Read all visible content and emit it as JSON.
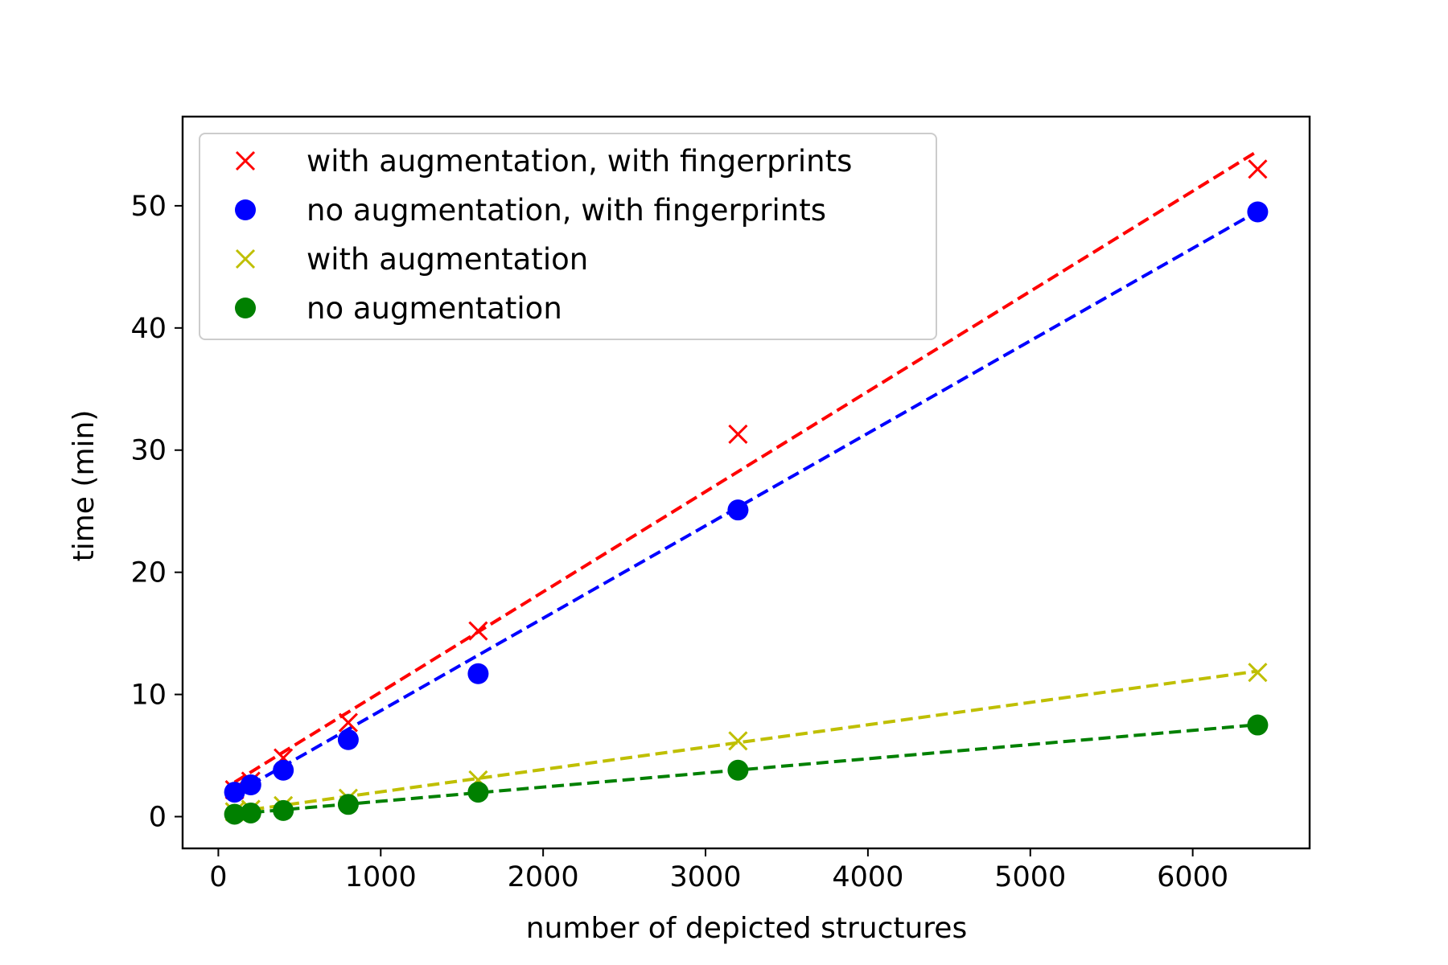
{
  "chart_data": {
    "type": "scatter",
    "xlabel": "number of depicted structures",
    "ylabel": "time (min)",
    "xlim": [
      -220,
      6720
    ],
    "ylim": [
      -2.6,
      57.3
    ],
    "xticks": [
      0,
      1000,
      2000,
      3000,
      4000,
      5000,
      6000
    ],
    "yticks": [
      0,
      10,
      20,
      30,
      40,
      50
    ],
    "xtick_labels": [
      "0",
      "1000",
      "2000",
      "3000",
      "4000",
      "5000",
      "6000"
    ],
    "ytick_labels": [
      "0",
      "10",
      "20",
      "30",
      "40",
      "50"
    ],
    "grid": false,
    "legend_position": "top-left",
    "series": [
      {
        "name": "with augmentation, with fingerprints",
        "marker": "x",
        "color": "#ff0000",
        "x": [
          100,
          200,
          400,
          800,
          1600,
          3200,
          6400
        ],
        "y": [
          2.2,
          2.9,
          4.8,
          7.7,
          15.2,
          31.3,
          53.0
        ],
        "fit": [
          2.0,
          0.0082
        ]
      },
      {
        "name": "no augmentation, with fingerprints",
        "marker": "o",
        "color": "#0000ff",
        "x": [
          100,
          200,
          400,
          800,
          1600,
          3200,
          6400
        ],
        "y": [
          2.0,
          2.6,
          3.8,
          6.3,
          11.7,
          25.1,
          49.5
        ],
        "fit": [
          1.1,
          0.00757
        ]
      },
      {
        "name": "with augmentation",
        "marker": "x",
        "color": "#bfbf00",
        "x": [
          100,
          200,
          400,
          800,
          1600,
          3200,
          6400
        ],
        "y": [
          0.4,
          0.6,
          0.9,
          1.5,
          3.0,
          6.2,
          11.8
        ],
        "fit": [
          0.2,
          0.00183
        ]
      },
      {
        "name": "no augmentation",
        "marker": "o",
        "color": "#008000",
        "x": [
          100,
          200,
          400,
          800,
          1600,
          3200,
          6400
        ],
        "y": [
          0.2,
          0.3,
          0.5,
          1.0,
          2.0,
          3.8,
          7.5
        ],
        "fit": [
          0.1,
          0.00116
        ]
      }
    ]
  }
}
